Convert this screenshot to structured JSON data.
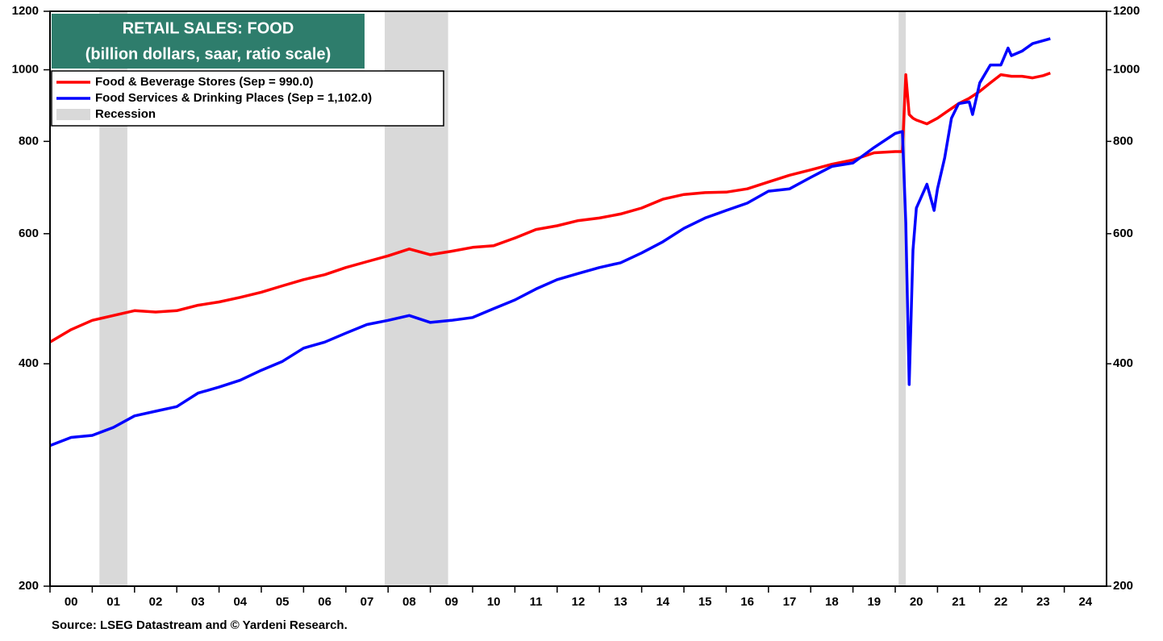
{
  "chart_data": {
    "type": "line",
    "title": "RETAIL SALES: FOOD",
    "subtitle": "(billion dollars, saar, ratio scale)",
    "source": "Source: LSEG Datastream and © Yardeni Research.",
    "log_scale": true,
    "xlim": [
      2000,
      2025
    ],
    "xticks": [
      {
        "value": 2000,
        "label": "00"
      },
      {
        "value": 2001,
        "label": "01"
      },
      {
        "value": 2002,
        "label": "02"
      },
      {
        "value": 2003,
        "label": "03"
      },
      {
        "value": 2004,
        "label": "04"
      },
      {
        "value": 2005,
        "label": "05"
      },
      {
        "value": 2006,
        "label": "06"
      },
      {
        "value": 2007,
        "label": "07"
      },
      {
        "value": 2008,
        "label": "08"
      },
      {
        "value": 2009,
        "label": "09"
      },
      {
        "value": 2010,
        "label": "10"
      },
      {
        "value": 2011,
        "label": "11"
      },
      {
        "value": 2012,
        "label": "12"
      },
      {
        "value": 2013,
        "label": "13"
      },
      {
        "value": 2014,
        "label": "14"
      },
      {
        "value": 2015,
        "label": "15"
      },
      {
        "value": 2016,
        "label": "16"
      },
      {
        "value": 2017,
        "label": "17"
      },
      {
        "value": 2018,
        "label": "18"
      },
      {
        "value": 2019,
        "label": "19"
      },
      {
        "value": 2020,
        "label": "20"
      },
      {
        "value": 2021,
        "label": "21"
      },
      {
        "value": 2022,
        "label": "22"
      },
      {
        "value": 2023,
        "label": "23"
      },
      {
        "value": 2024,
        "label": "24"
      }
    ],
    "ylim": [
      200,
      1200
    ],
    "yticks": [
      200,
      400,
      600,
      800,
      1000,
      1200
    ],
    "y2lim": [
      200,
      1200
    ],
    "y2ticks": [
      200,
      400,
      600,
      800,
      1000,
      1200
    ],
    "recession_label": "Recession",
    "recession_color": "#d9d9d9",
    "recessions": [
      [
        2001.17,
        2001.83
      ],
      [
        2007.92,
        2009.42
      ],
      [
        2020.08,
        2020.25
      ]
    ],
    "series": [
      {
        "name": "Food & Beverage Stores (Sep = 990.0)",
        "color": "#ff0000",
        "x": [
          2000.0,
          2000.5,
          2001.0,
          2001.5,
          2002.0,
          2002.5,
          2003.0,
          2003.5,
          2004.0,
          2004.5,
          2005.0,
          2005.5,
          2006.0,
          2006.5,
          2007.0,
          2007.5,
          2008.0,
          2008.5,
          2009.0,
          2009.5,
          2010.0,
          2010.5,
          2011.0,
          2011.5,
          2012.0,
          2012.5,
          2013.0,
          2013.5,
          2014.0,
          2014.5,
          2015.0,
          2015.5,
          2016.0,
          2016.5,
          2017.0,
          2017.5,
          2018.0,
          2018.5,
          2019.0,
          2019.5,
          2020.0,
          2020.17,
          2020.25,
          2020.33,
          2020.42,
          2020.5,
          2020.75,
          2021.0,
          2021.25,
          2021.5,
          2021.75,
          2022.0,
          2022.25,
          2022.5,
          2022.75,
          2023.0,
          2023.25,
          2023.5,
          2023.67
        ],
        "values": [
          428,
          445,
          458,
          465,
          472,
          470,
          472,
          480,
          485,
          492,
          500,
          510,
          520,
          528,
          540,
          550,
          560,
          572,
          562,
          568,
          575,
          578,
          592,
          608,
          615,
          625,
          630,
          638,
          650,
          668,
          678,
          682,
          683,
          690,
          705,
          720,
          732,
          745,
          755,
          772,
          775,
          775,
          985,
          870,
          860,
          855,
          845,
          860,
          880,
          900,
          915,
          935,
          960,
          985,
          980,
          980,
          975,
          982,
          990
        ]
      },
      {
        "name": "Food Services & Drinking Places (Sep = 1,102.0)",
        "color": "#0000ff",
        "x": [
          2000.0,
          2000.5,
          2001.0,
          2001.5,
          2002.0,
          2002.5,
          2003.0,
          2003.5,
          2004.0,
          2004.5,
          2005.0,
          2005.5,
          2006.0,
          2006.5,
          2007.0,
          2007.5,
          2008.0,
          2008.5,
          2009.0,
          2009.5,
          2010.0,
          2010.5,
          2011.0,
          2011.5,
          2012.0,
          2012.5,
          2013.0,
          2013.5,
          2014.0,
          2014.5,
          2015.0,
          2015.5,
          2016.0,
          2016.5,
          2017.0,
          2017.5,
          2018.0,
          2018.5,
          2019.0,
          2019.5,
          2020.0,
          2020.17,
          2020.25,
          2020.33,
          2020.42,
          2020.5,
          2020.75,
          2020.92,
          2021.0,
          2021.17,
          2021.33,
          2021.5,
          2021.75,
          2021.83,
          2022.0,
          2022.25,
          2022.5,
          2022.67,
          2022.75,
          2023.0,
          2023.25,
          2023.67
        ],
        "values": [
          310,
          318,
          320,
          328,
          340,
          345,
          350,
          365,
          372,
          380,
          392,
          403,
          420,
          428,
          440,
          452,
          458,
          465,
          455,
          458,
          462,
          475,
          488,
          505,
          520,
          530,
          540,
          548,
          565,
          585,
          610,
          630,
          645,
          660,
          685,
          690,
          715,
          740,
          748,
          785,
          820,
          825,
          620,
          375,
          570,
          650,
          700,
          645,
          690,
          760,
          860,
          900,
          905,
          870,
          960,
          1015,
          1015,
          1070,
          1045,
          1060,
          1085,
          1102
        ]
      }
    ]
  }
}
